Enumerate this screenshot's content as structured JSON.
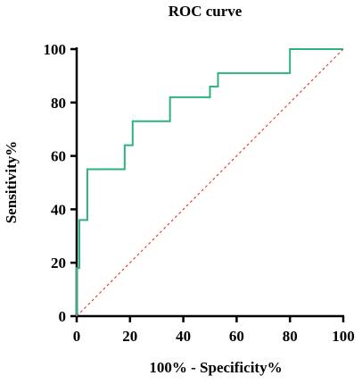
{
  "chart_data": {
    "type": "line",
    "title": "ROC curve",
    "xlabel": "100% - Specificity%",
    "ylabel": "Sensitivity%",
    "xlim": [
      0,
      100
    ],
    "ylim": [
      0,
      100
    ],
    "x_ticks": [
      "0",
      "20",
      "40",
      "60",
      "80",
      "100"
    ],
    "y_ticks": [
      "0",
      "20",
      "40",
      "60",
      "80",
      "100"
    ],
    "grid": false,
    "series": [
      {
        "style": "step",
        "color": "#2db27d",
        "x": [
          0,
          0,
          1,
          1,
          4,
          4,
          18,
          18,
          21,
          21,
          35,
          35,
          50,
          50,
          53,
          53,
          80,
          80,
          100
        ],
        "y": [
          0,
          18,
          18,
          36,
          36,
          55,
          55,
          64,
          64,
          73,
          73,
          82,
          82,
          86,
          86,
          91,
          91,
          100,
          100
        ]
      },
      {
        "style": "dashed",
        "color": "#e0463c",
        "x": [
          0,
          100
        ],
        "y": [
          0,
          100
        ]
      }
    ]
  }
}
